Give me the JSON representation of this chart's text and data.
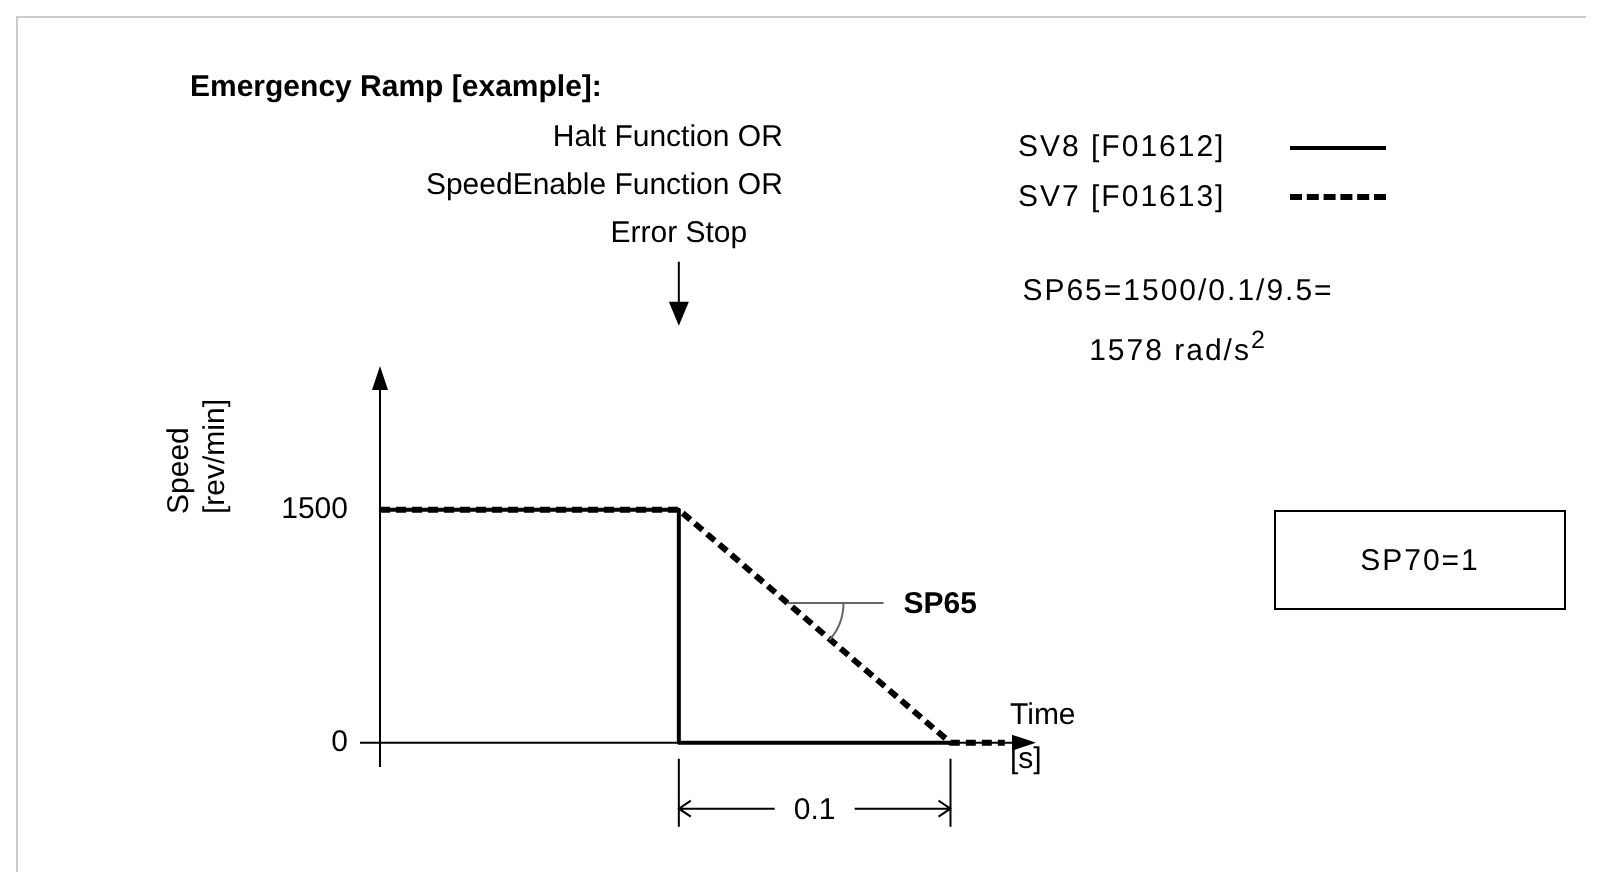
{
  "chart_data": {
    "type": "line",
    "title": "Emergency Ramp [example]:",
    "xlabel": "Time [s]",
    "ylabel": "Speed [rev/min]",
    "categories": [
      null,
      null,
      null,
      null,
      null,
      null,
      null,
      null,
      null,
      null,
      null,
      null,
      null,
      null,
      null,
      null,
      null,
      null,
      null,
      null,
      null,
      null,
      null,
      null,
      null
    ],
    "series": [
      {
        "name": "SV8 [F01612]",
        "color": "#000000",
        "type": "step",
        "line_style": "solid",
        "values": [
          1500,
          1500,
          1500,
          1500,
          1500,
          1500,
          1500,
          1500,
          1500,
          1500,
          1500,
          0,
          0,
          0,
          0,
          0,
          0,
          0,
          0,
          0,
          0,
          0,
          null,
          null,
          null
        ]
      },
      {
        "name": "SV7 [F01613]",
        "color": "#000000",
        "type": "line",
        "line_style": "dashed",
        "values": [
          1500,
          1500,
          1500,
          1500,
          1500,
          1500,
          1500,
          1500,
          1500,
          1500,
          1500,
          1500,
          1350,
          1200,
          1050,
          900,
          750,
          600,
          450,
          300,
          150,
          0,
          0,
          0,
          null
        ]
      }
    ],
    "ylim": [
      -150,
      2400
    ],
    "yticks": [
      0,
      1500
    ],
    "tick_labels": "y",
    "grid": false,
    "legend": "top right",
    "marker": "none",
    "ref_lines": [
      {
        "axis": "y",
        "value": 0,
        "color": "#000000"
      }
    ],
    "annotations": [
      "Halt Function OR\nSpeedEnable Function OR\nError Stop",
      "SP65=1500/0.1/9.5=\n1578 rad/s$^{2}$",
      "SP70=1",
      "SP65",
      "0.1"
    ]
  }
}
